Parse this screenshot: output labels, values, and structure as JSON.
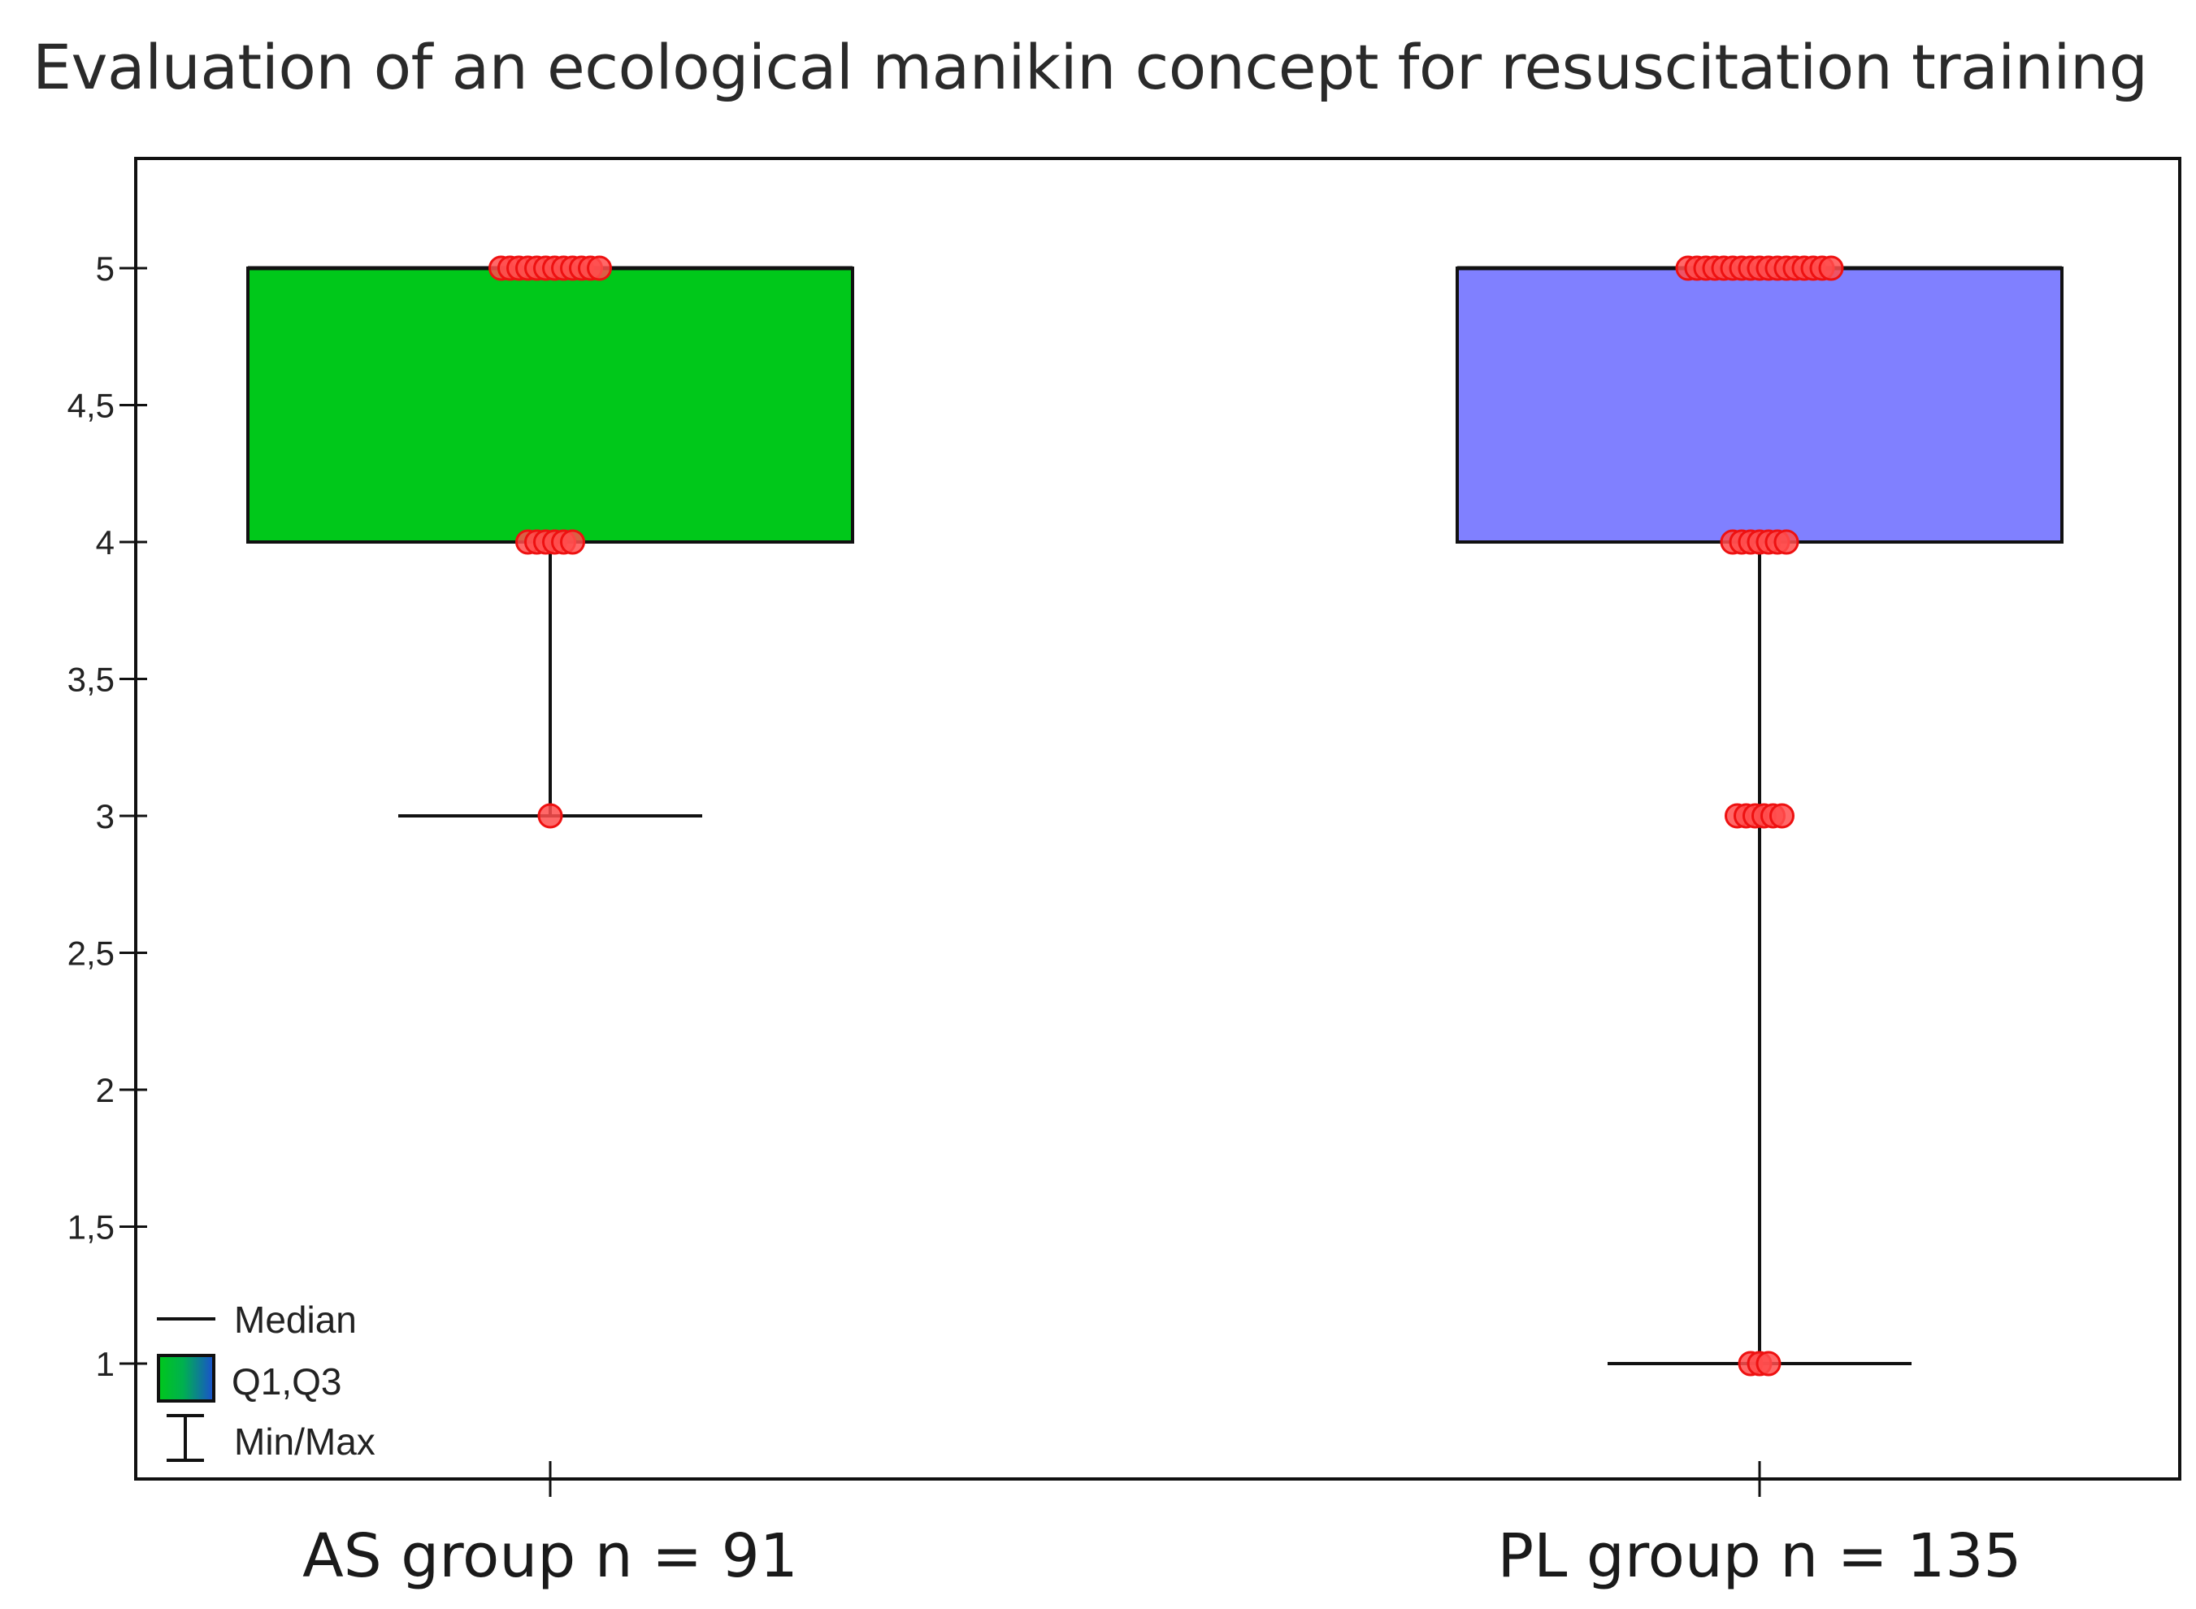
{
  "chart_data": {
    "type": "box",
    "title": "Evaluation of an ecological manikin concept for resuscitation training",
    "ylim": [
      0.6,
      5.4
    ],
    "yticks": [
      1,
      1.5,
      2,
      2.5,
      3,
      3.5,
      4,
      4.5,
      5
    ],
    "ytick_labels": [
      "1",
      "1,5",
      "2",
      "2,5",
      "3",
      "3,5",
      "4",
      "4,5",
      "5"
    ],
    "categories": [
      "AS group n = 91",
      "PL group n = 135"
    ],
    "groups": [
      {
        "label": "AS group n = 91",
        "min": 3,
        "q1": 4,
        "median": 5,
        "q3": 5,
        "max": 5,
        "color": "#00c81a",
        "points": [
          5,
          5,
          5,
          5,
          5,
          5,
          5,
          5,
          5,
          5,
          5,
          5,
          4,
          4,
          4,
          4,
          4,
          4,
          3
        ]
      },
      {
        "label": "PL group n = 135",
        "min": 1,
        "q1": 4,
        "median": 5,
        "q3": 5,
        "max": 5,
        "color": "#8080ff",
        "points": [
          5,
          5,
          5,
          5,
          5,
          5,
          5,
          5,
          5,
          5,
          5,
          5,
          5,
          5,
          5,
          5,
          5,
          4,
          4,
          4,
          4,
          4,
          4,
          4,
          3,
          3,
          3,
          3,
          3,
          3,
          1,
          1,
          1
        ]
      }
    ],
    "point_color": "#ff4d4d",
    "legend": {
      "position": "bottom-left",
      "items": [
        {
          "label": "Median",
          "symbol": "line"
        },
        {
          "label": "Q1,Q3",
          "symbol": "box"
        },
        {
          "label": "Min/Max",
          "symbol": "whisker"
        }
      ]
    }
  }
}
